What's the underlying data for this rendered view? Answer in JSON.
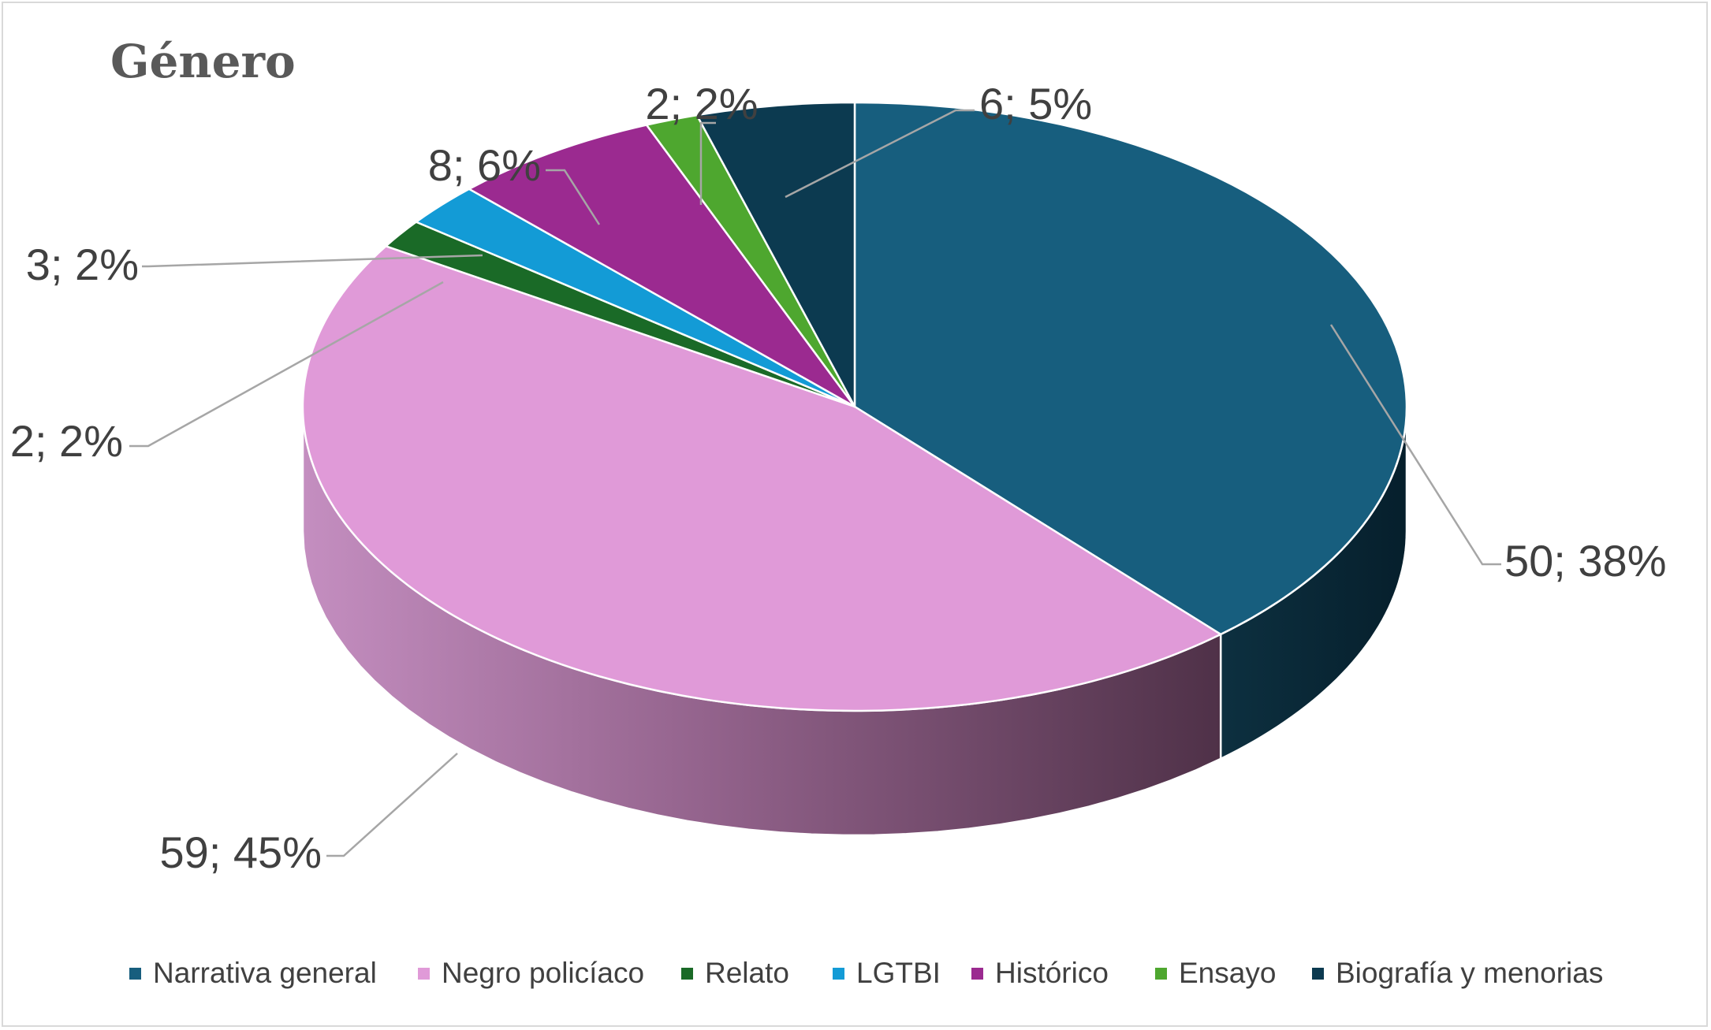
{
  "chart_data": {
    "type": "pie",
    "title": "Género",
    "categories": [
      "Narrativa general",
      "Negro policíaco",
      "Relato",
      "LGTBI",
      "Histórico",
      "Ensayo",
      "Biografía y menorias"
    ],
    "values": [
      50,
      59,
      2,
      3,
      8,
      2,
      6
    ],
    "percentages": [
      38,
      45,
      2,
      2,
      6,
      2,
      5
    ],
    "data_labels": [
      "50; 38%",
      "59; 45%",
      "2; 2%",
      "3; 2%",
      "8; 6%",
      "2; 2%",
      "6; 5%"
    ],
    "colors": [
      "#175e7e",
      "#e09ad8",
      "#1a6a27",
      "#139bd6",
      "#9b2a90",
      "#4ea72f",
      "#0c3a50"
    ],
    "legend_position": "bottom",
    "style": "3d-pie"
  }
}
